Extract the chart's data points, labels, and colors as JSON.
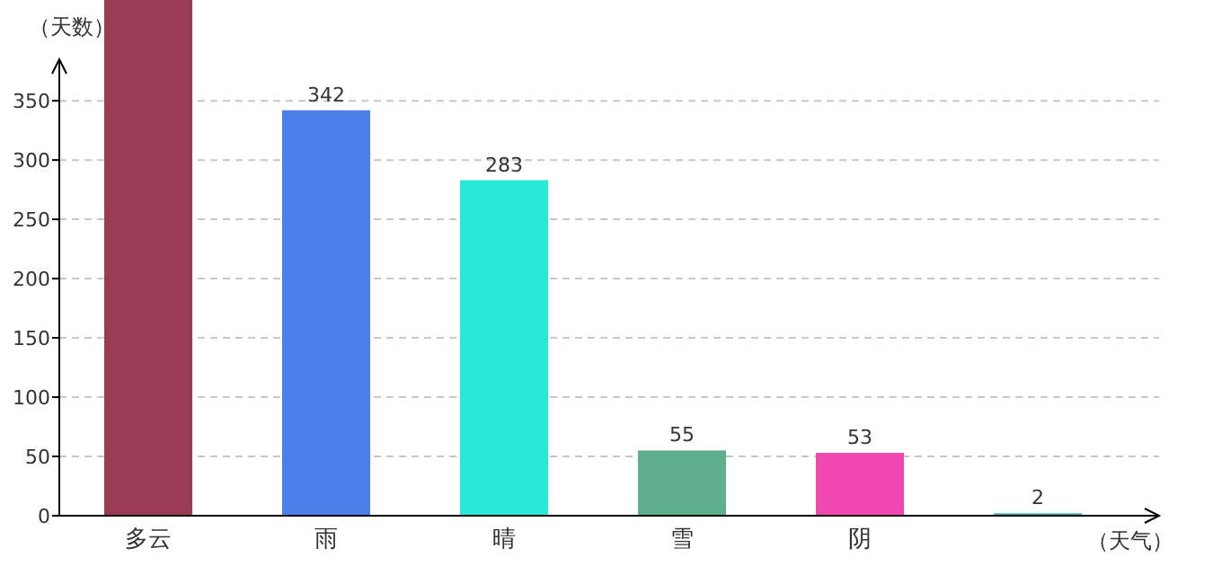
{
  "chart_data": {
    "type": "bar",
    "xlabel": "（天气）",
    "ylabel": "（天数）",
    "categories": [
      "多云",
      "雨",
      "晴",
      "雪",
      "阴",
      null
    ],
    "values": [
      435,
      342,
      283,
      55,
      53,
      2
    ],
    "colors": [
      "#9a3a55",
      "#4c80e8",
      "#28e8d8",
      "#5fae8c",
      "#f048b0",
      "#3ab0b0"
    ],
    "value_labels": [
      null,
      "342",
      "283",
      "55",
      "53",
      "2"
    ],
    "ylim": [
      0,
      435
    ],
    "yticks": [
      0,
      50,
      100,
      150,
      200,
      250,
      300,
      350
    ],
    "grid": "y"
  }
}
